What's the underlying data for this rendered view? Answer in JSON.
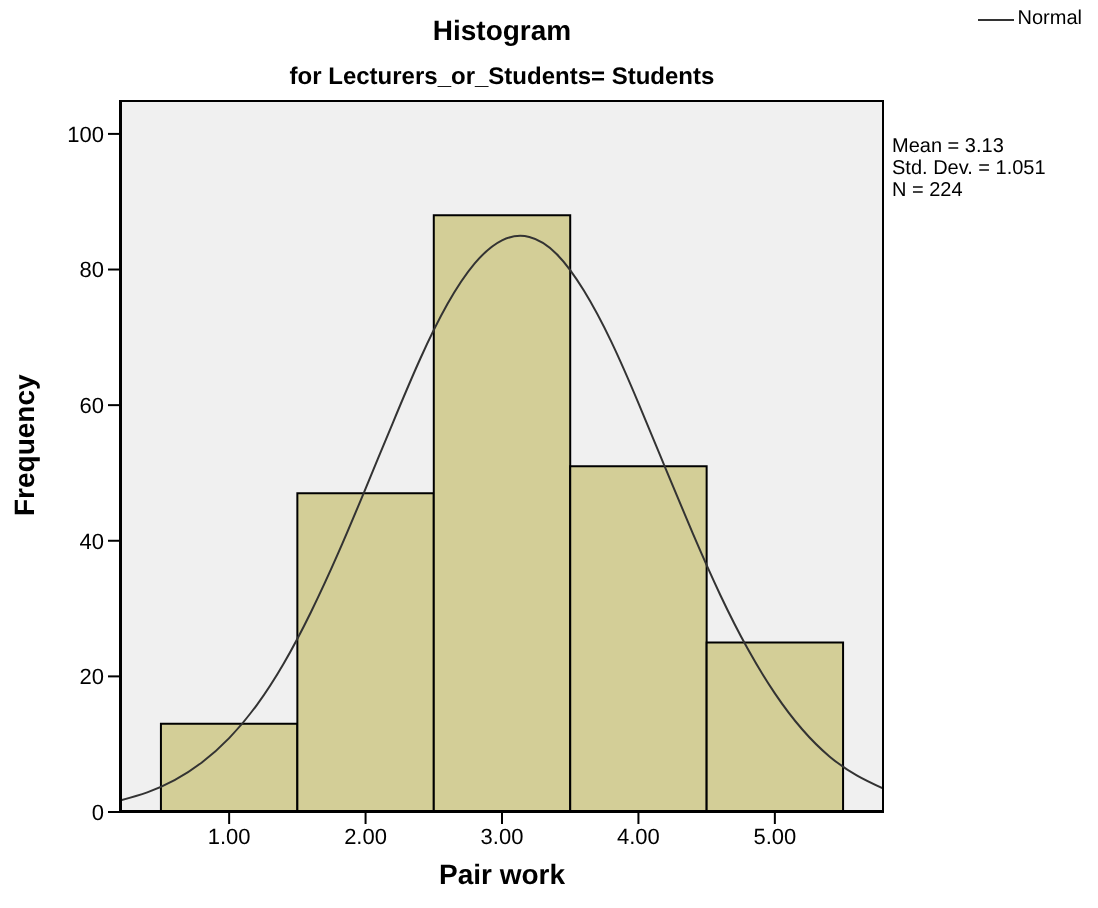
{
  "chart_data": {
    "type": "histogram",
    "title": "Histogram",
    "subtitle": "for Lecturers_or_Students= Students",
    "xlabel": "Pair work",
    "ylabel": "Frequency",
    "bins": [
      0.5,
      1.5,
      2.5,
      3.5,
      4.5,
      5.5
    ],
    "values": [
      13,
      47,
      88,
      51,
      25
    ],
    "color": "#d3ce97",
    "series": [
      {
        "type": "line",
        "name": "Normal",
        "color": "#333333",
        "x": [
          0.2,
          0.4,
          0.6,
          0.8,
          1.0,
          1.2,
          1.4,
          1.6,
          1.8,
          2.0,
          2.2,
          2.4,
          2.6,
          2.8,
          3.0,
          3.2,
          3.4,
          3.6,
          3.8,
          4.0,
          4.2,
          4.4,
          4.6,
          4.8,
          5.0,
          5.2,
          5.4,
          5.6,
          5.8
        ],
        "values": [
          1.7,
          2.9,
          4.7,
          7.3,
          10.9,
          15.7,
          21.9,
          29.5,
          38.2,
          47.7,
          57.4,
          66.8,
          74.9,
          80.9,
          84.3,
          84.8,
          82.3,
          76.9,
          69.4,
          60.3,
          50.6,
          41.0,
          32.0,
          24.1,
          17.5,
          12.2,
          8.2,
          5.4,
          3.4
        ]
      }
    ],
    "annotations": [
      "Mean = 3.13",
      "Std. Dev. = 1.051",
      "N = 224"
    ],
    "xlim": [
      0.2,
      5.8
    ],
    "xticks": [
      {
        "value": 1,
        "label": "1.00"
      },
      {
        "value": 2,
        "label": "2.00"
      },
      {
        "value": 3,
        "label": "3.00"
      },
      {
        "value": 4,
        "label": "4.00"
      },
      {
        "value": 5,
        "label": "5.00"
      }
    ],
    "ylim": [
      0,
      105
    ],
    "yticks": [
      0,
      20,
      40,
      60,
      80,
      100
    ],
    "legend": "top right",
    "marker": "none",
    "line_style": "solid"
  }
}
